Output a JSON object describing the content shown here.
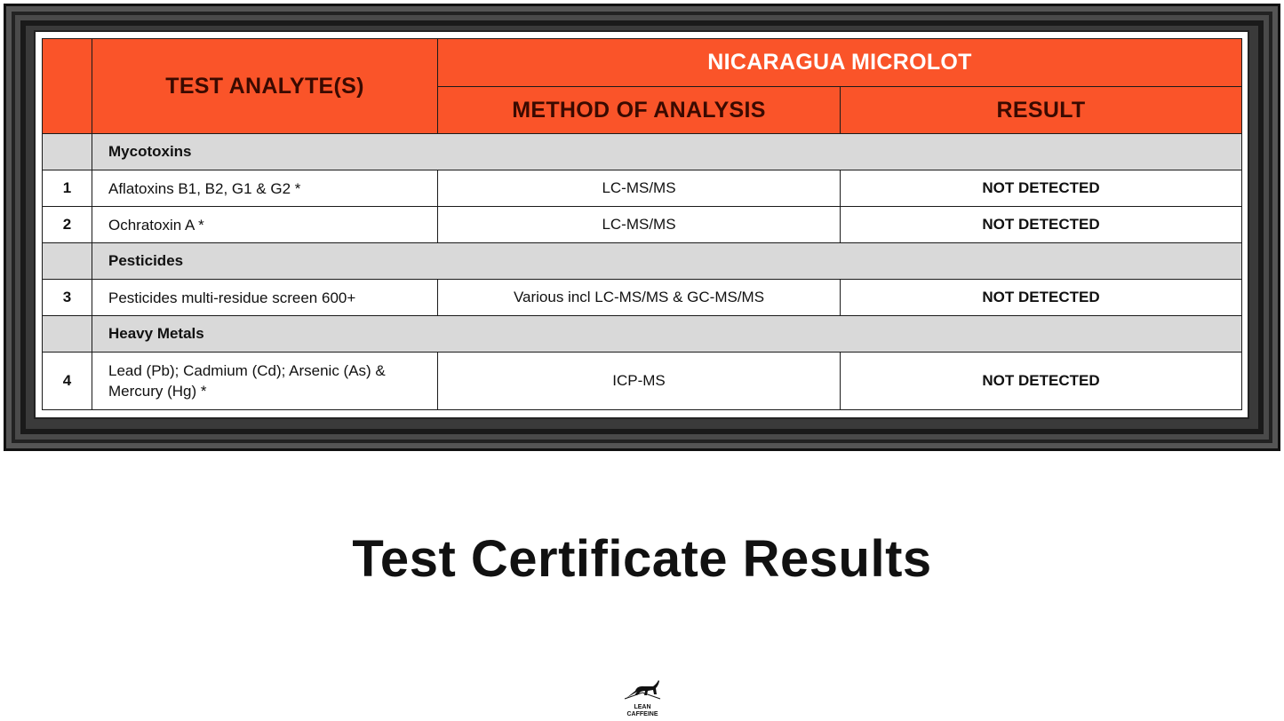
{
  "table": {
    "header": {
      "analyte": "TEST ANALYTE(S)",
      "group": "NICARAGUA MICROLOT",
      "method": "METHOD OF ANALYSIS",
      "result": "RESULT"
    },
    "categories": [
      "Mycotoxins",
      "Pesticides",
      "Heavy Metals"
    ],
    "rows": [
      {
        "num": "1",
        "analyte": "Aflatoxins B1, B2, G1 & G2 *",
        "method": "LC-MS/MS",
        "result": "NOT DETECTED"
      },
      {
        "num": "2",
        "analyte": "Ochratoxin A *",
        "method": "LC-MS/MS",
        "result": "NOT DETECTED"
      },
      {
        "num": "3",
        "analyte": "Pesticides multi-residue screen 600+",
        "method": "Various incl LC-MS/MS & GC-MS/MS",
        "result": "NOT DETECTED"
      },
      {
        "num": "4",
        "analyte": "Lead (Pb); Cadmium (Cd); Arsenic (As) & Mercury (Hg) *",
        "method": "ICP-MS",
        "result": "NOT DETECTED"
      }
    ]
  },
  "title": "Test Certificate Results",
  "logo": {
    "line1": "LEAN",
    "line2": "CAFFEINE"
  },
  "colors": {
    "header": "#fa5429",
    "category": "#d9d9d9",
    "frame": "#3a3a3a"
  }
}
